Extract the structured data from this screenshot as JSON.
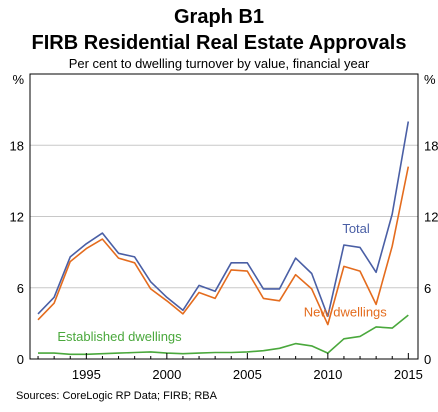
{
  "title": "Graph B1",
  "subtitle": "FIRB Residential Real Estate Approvals",
  "description": "Per cent to dwelling turnover by value, financial year",
  "source": "Sources:  CoreLogic RP Data; FIRB; RBA",
  "colors": {
    "total": "#4a5fa5",
    "new": "#e46c1e",
    "established": "#4aa83c",
    "grid": "#c8c8c8",
    "axis": "#000000"
  },
  "chart_data": {
    "type": "line",
    "ylabel_left": "%",
    "ylabel_right": "%",
    "xlim": [
      1991.5,
      2015.6
    ],
    "ylim": [
      0,
      24
    ],
    "yticks": [
      0,
      6,
      12,
      18
    ],
    "xticks": [
      1995,
      2000,
      2005,
      2010,
      2015
    ],
    "grid": true,
    "x": [
      1992,
      1993,
      1994,
      1995,
      1996,
      1997,
      1998,
      1999,
      2000,
      2001,
      2002,
      2003,
      2004,
      2005,
      2006,
      2007,
      2008,
      2009,
      2010,
      2011,
      2012,
      2013,
      2014,
      2015
    ],
    "series": [
      {
        "name": "Total",
        "key": "total",
        "label_at": [
          2010.9,
          10.6
        ],
        "values": [
          3.8,
          5.2,
          8.6,
          9.7,
          10.6,
          8.9,
          8.6,
          6.5,
          5.2,
          4.1,
          6.2,
          5.7,
          8.1,
          8.1,
          5.9,
          5.9,
          8.5,
          7.2,
          3.6,
          9.6,
          9.4,
          7.3,
          12.2,
          20.0
        ]
      },
      {
        "name": "New dwellings",
        "key": "new",
        "label_at": [
          2008.5,
          3.6
        ],
        "values": [
          3.3,
          4.7,
          8.2,
          9.3,
          10.1,
          8.5,
          8.1,
          5.9,
          4.9,
          3.8,
          5.6,
          5.1,
          7.5,
          7.4,
          5.1,
          4.9,
          7.1,
          5.9,
          2.9,
          7.8,
          7.4,
          4.6,
          9.5,
          16.2
        ]
      },
      {
        "name": "Established dwellings",
        "key": "established",
        "label_at": [
          1993.2,
          1.5
        ],
        "values": [
          0.5,
          0.5,
          0.4,
          0.4,
          0.45,
          0.5,
          0.55,
          0.6,
          0.5,
          0.45,
          0.5,
          0.55,
          0.55,
          0.6,
          0.7,
          0.9,
          1.3,
          1.1,
          0.5,
          1.7,
          1.9,
          2.7,
          2.6,
          3.7
        ]
      }
    ]
  }
}
